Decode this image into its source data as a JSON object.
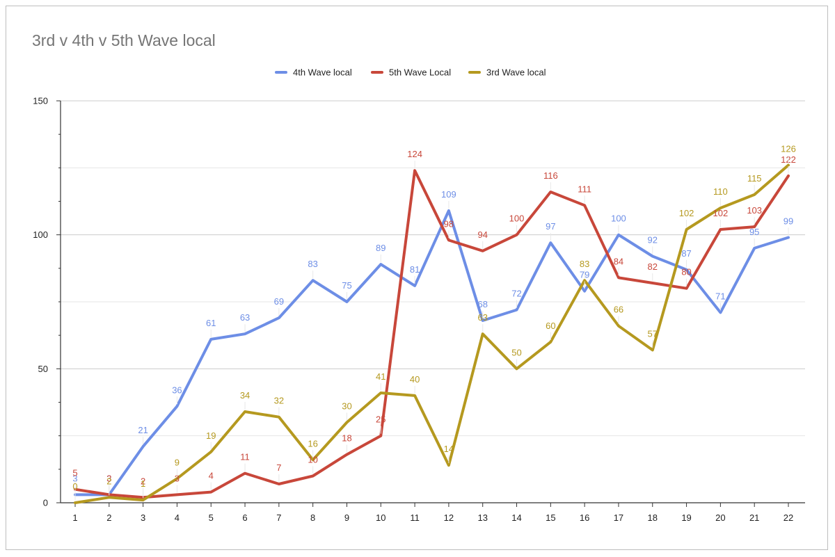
{
  "chart_data": {
    "type": "line",
    "title": "3rd v 4th v 5th Wave local",
    "xlabel": "",
    "ylabel": "",
    "categories": [
      "1",
      "2",
      "3",
      "4",
      "5",
      "6",
      "7",
      "8",
      "9",
      "10",
      "11",
      "12",
      "13",
      "14",
      "15",
      "16",
      "17",
      "18",
      "19",
      "20",
      "21",
      "22"
    ],
    "ylim": [
      0,
      150
    ],
    "yticks": [
      0,
      50,
      100,
      150
    ],
    "grid": true,
    "legend_position": "top",
    "series": [
      {
        "name": "4th Wave local",
        "color": "#6d8ee6",
        "values": [
          3,
          3,
          21,
          36,
          61,
          63,
          69,
          83,
          75,
          89,
          81,
          109,
          68,
          72,
          97,
          79,
          100,
          92,
          87,
          71,
          95,
          99
        ]
      },
      {
        "name": "5th Wave Local",
        "color": "#c8473a",
        "values": [
          5,
          3,
          2,
          3,
          4,
          11,
          7,
          10,
          18,
          25,
          124,
          98,
          94,
          100,
          116,
          111,
          84,
          82,
          80,
          102,
          103,
          122
        ]
      },
      {
        "name": "3rd Wave local",
        "color": "#b5991f",
        "values": [
          0,
          2,
          1,
          9,
          19,
          34,
          32,
          16,
          30,
          41,
          40,
          14,
          63,
          50,
          60,
          83,
          66,
          57,
          102,
          110,
          115,
          126
        ]
      }
    ]
  }
}
